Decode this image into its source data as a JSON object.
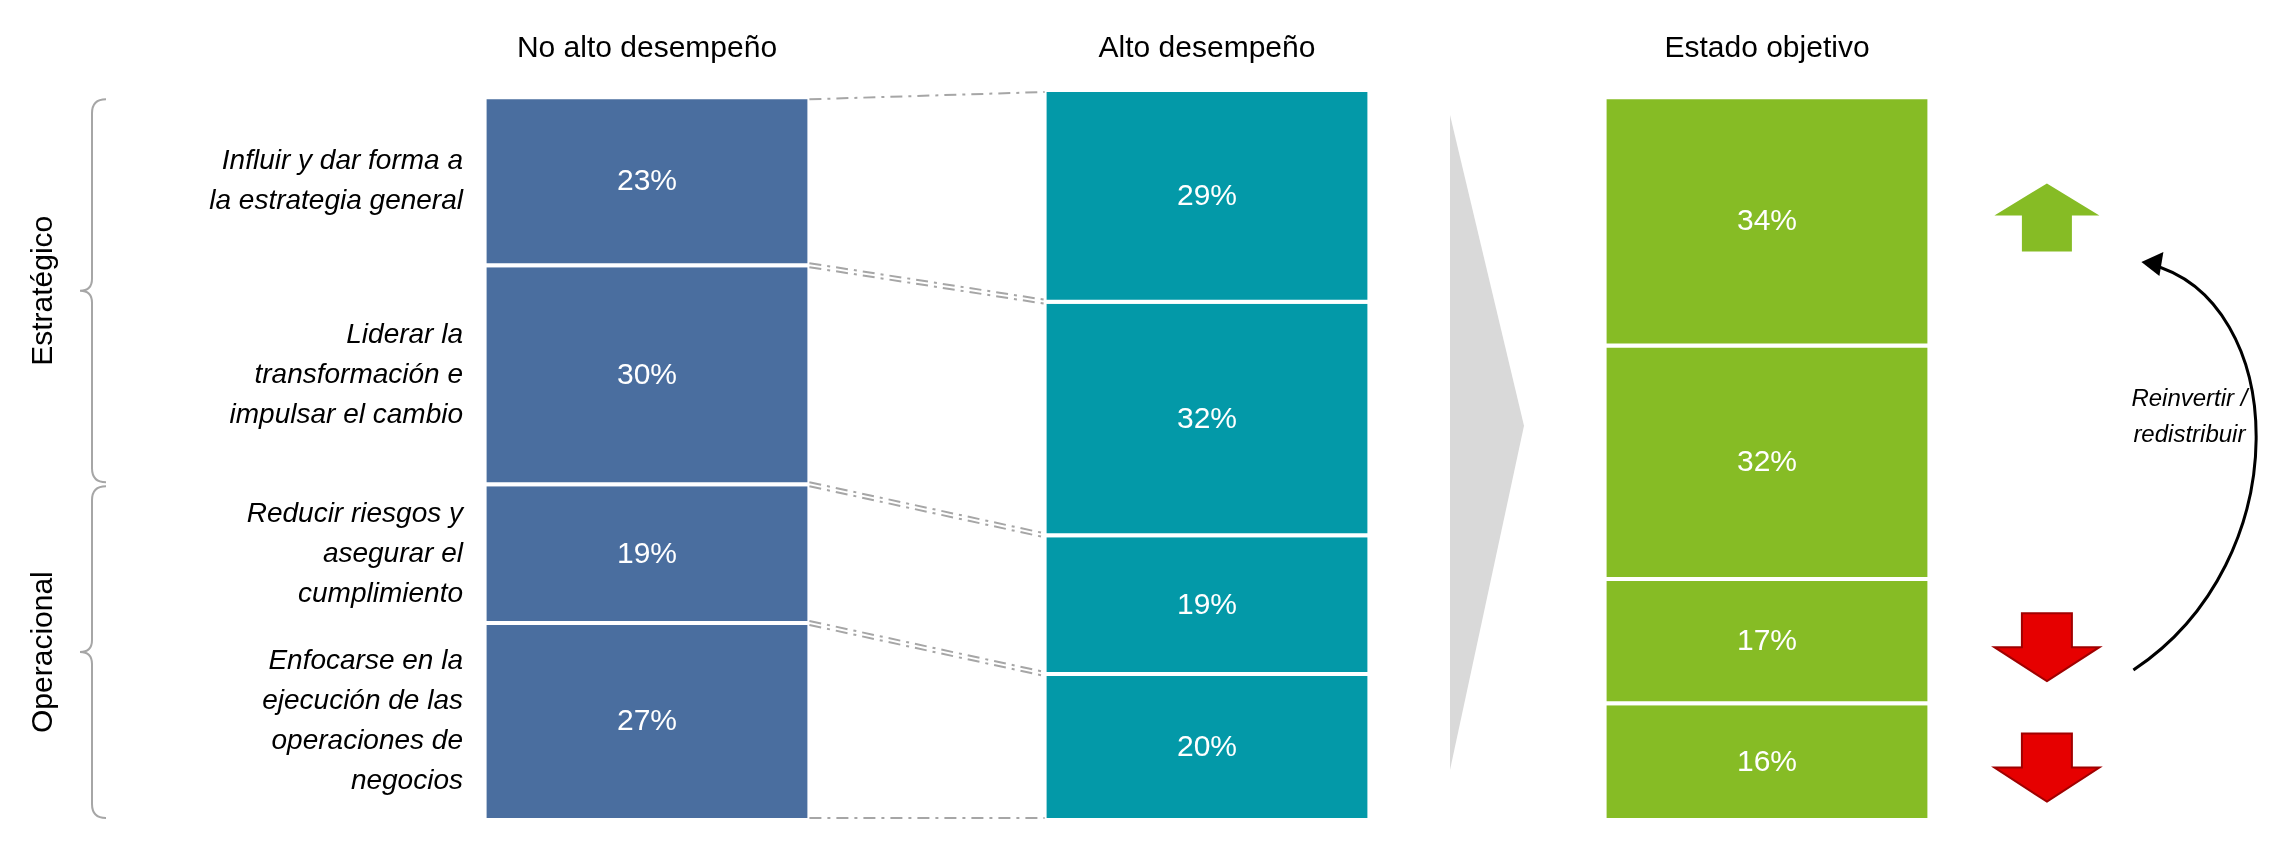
{
  "chart_data": {
    "type": "bar",
    "stacked": true,
    "tick_labels": "x",
    "categories": [
      "No alto desempeño",
      "Alto desempeño",
      "Estado objetivo"
    ],
    "series": [
      {
        "name": "Enfocarse en la ejecución de las operaciones de negocios",
        "colors": [
          "#4a6e9f",
          "#0399a8",
          "#86bc25"
        ],
        "values": [
          27,
          20,
          16
        ],
        "value_labels": [
          "27%",
          "20%",
          "16%"
        ]
      },
      {
        "name": "Reducir riesgos y asegurar el cumplimiento",
        "colors": [
          "#4a6e9f",
          "#0399a8",
          "#86bc25"
        ],
        "values": [
          19,
          19,
          17
        ],
        "value_labels": [
          "19%",
          "19%",
          "17%"
        ]
      },
      {
        "name": "Liderar la transformación e impulsar el cambio",
        "colors": [
          "#4a6e9f",
          "#0399a8",
          "#86bc25"
        ],
        "values": [
          30,
          32,
          32
        ],
        "value_labels": [
          "30%",
          "32%",
          "32%"
        ]
      },
      {
        "name": "Influir y dar forma a la estrategia general",
        "colors": [
          "#4a6e9f",
          "#0399a8",
          "#86bc25"
        ],
        "values": [
          23,
          29,
          34
        ],
        "value_labels": [
          "23%",
          "29%",
          "34%"
        ]
      }
    ],
    "annotations": [
      "Estratégico",
      "Operacional",
      "Reinvertir / redistribuir"
    ]
  }
}
